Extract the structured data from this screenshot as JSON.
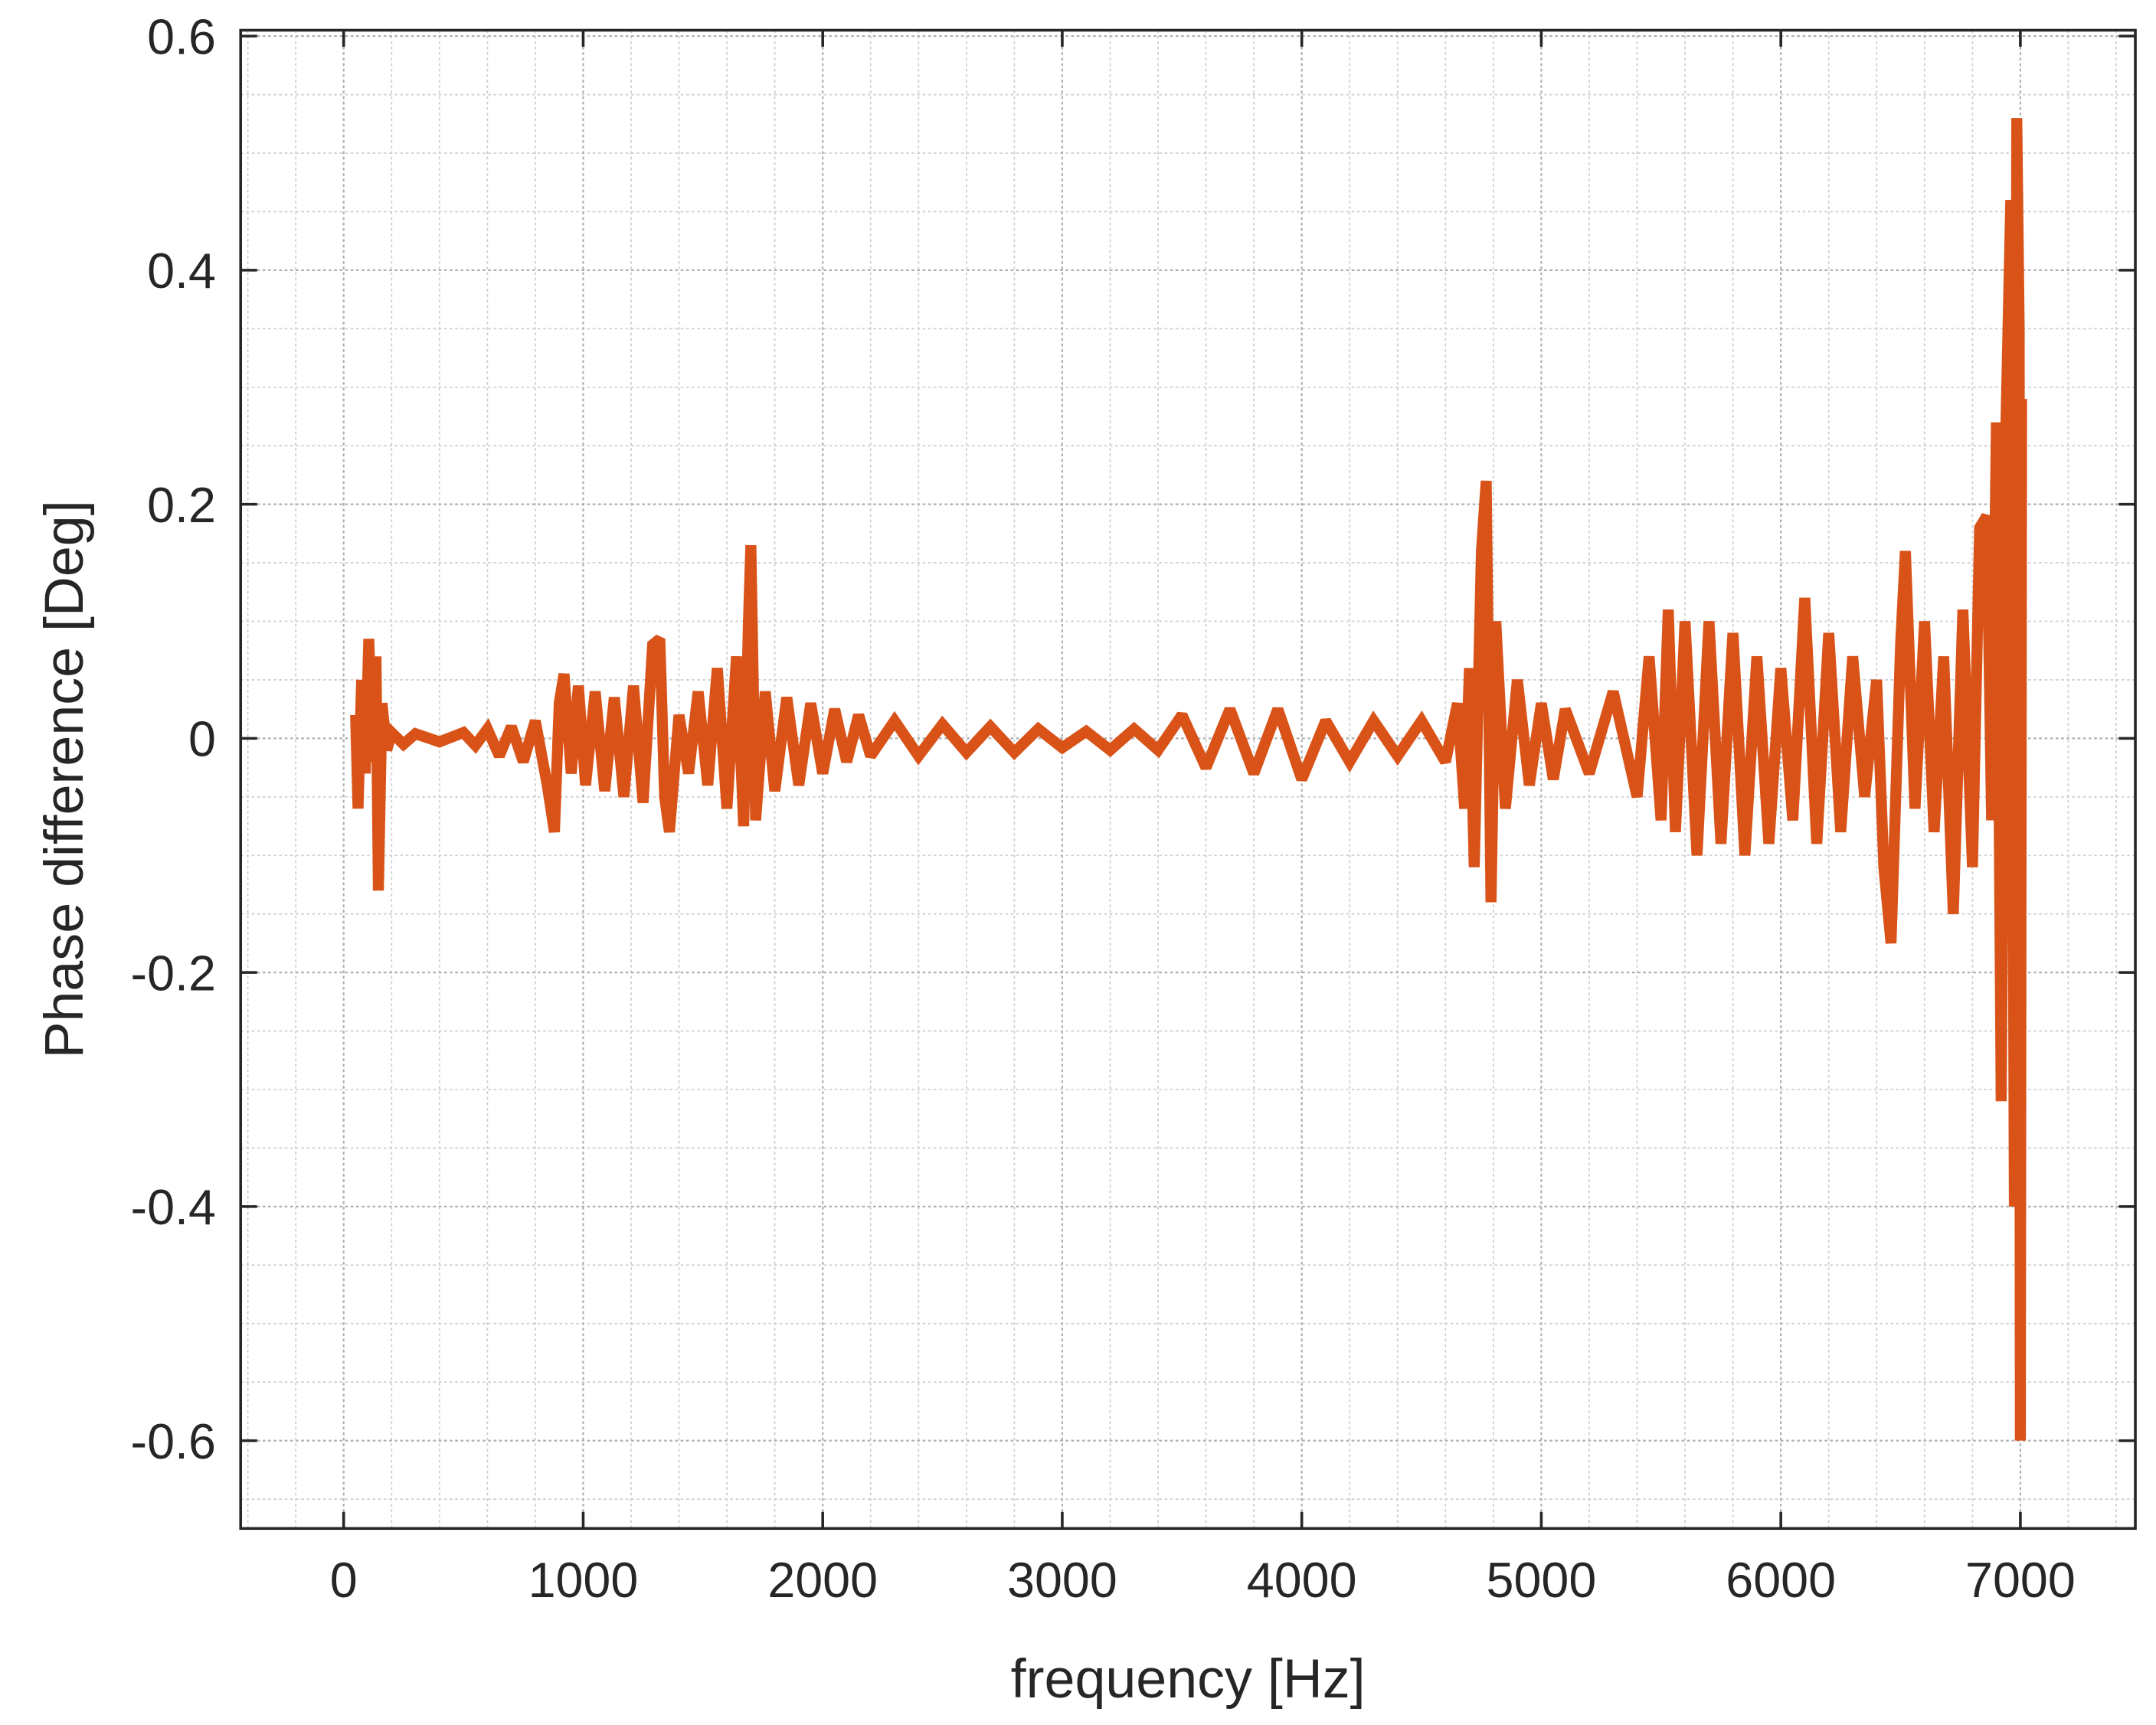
{
  "chart_data": {
    "type": "line",
    "xlabel": "frequency [Hz]",
    "ylabel": "Phase difference [Deg]",
    "xlim": [
      -430,
      7480
    ],
    "ylim": [
      -0.675,
      0.605
    ],
    "xticks": [
      0,
      1000,
      2000,
      3000,
      4000,
      5000,
      6000,
      7000
    ],
    "yticks": [
      -0.6,
      -0.4,
      -0.2,
      0,
      0.2,
      0.4,
      0.6
    ],
    "grid": true,
    "minor_grid": true,
    "series": [
      {
        "color": "#d95319",
        "x": [
          50,
          60,
          75,
          90,
          105,
          120,
          135,
          145,
          160,
          180,
          200,
          250,
          300,
          400,
          500,
          550,
          600,
          650,
          700,
          750,
          800,
          850,
          880,
          900,
          920,
          950,
          980,
          1010,
          1050,
          1090,
          1130,
          1170,
          1210,
          1250,
          1290,
          1320,
          1340,
          1360,
          1400,
          1440,
          1480,
          1520,
          1560,
          1600,
          1640,
          1670,
          1690,
          1700,
          1720,
          1760,
          1800,
          1850,
          1900,
          1950,
          2000,
          2050,
          2100,
          2150,
          2200,
          2300,
          2400,
          2500,
          2600,
          2700,
          2800,
          2900,
          3000,
          3100,
          3200,
          3300,
          3400,
          3500,
          3600,
          3700,
          3800,
          3900,
          4000,
          4100,
          4200,
          4300,
          4400,
          4500,
          4600,
          4650,
          4680,
          4700,
          4720,
          4750,
          4770,
          4790,
          4810,
          4850,
          4900,
          4950,
          5000,
          5050,
          5100,
          5200,
          5300,
          5400,
          5450,
          5500,
          5530,
          5560,
          5600,
          5650,
          5700,
          5750,
          5800,
          5850,
          5900,
          5950,
          6000,
          6050,
          6100,
          6150,
          6200,
          6250,
          6300,
          6350,
          6400,
          6430,
          6460,
          6500,
          6520,
          6560,
          6600,
          6640,
          6680,
          6720,
          6760,
          6800,
          6830,
          6860,
          6880,
          6900,
          6920,
          6940,
          6960,
          6975,
          6985,
          6995,
          7000,
          7005
        ],
        "values": [
          0.02,
          -0.06,
          0.05,
          -0.03,
          0.085,
          -0.02,
          0.07,
          -0.13,
          0.03,
          -0.01,
          0.005,
          -0.005,
          0.004,
          -0.003,
          0.005,
          -0.006,
          0.008,
          -0.015,
          0.01,
          -0.02,
          0.015,
          -0.04,
          -0.08,
          0.03,
          0.055,
          -0.03,
          0.045,
          -0.04,
          0.04,
          -0.045,
          0.035,
          -0.05,
          0.045,
          -0.055,
          0.08,
          0.085,
          -0.05,
          -0.08,
          0.02,
          -0.03,
          0.04,
          -0.04,
          0.06,
          -0.06,
          0.07,
          -0.075,
          0.1,
          0.165,
          -0.07,
          0.04,
          -0.045,
          0.035,
          -0.04,
          0.03,
          -0.03,
          0.025,
          -0.02,
          0.02,
          -0.015,
          0.015,
          -0.015,
          0.012,
          -0.012,
          0.01,
          -0.012,
          0.008,
          -0.008,
          0.006,
          -0.01,
          0.008,
          -0.01,
          0.02,
          -0.025,
          0.025,
          -0.03,
          0.025,
          -0.035,
          0.015,
          -0.02,
          0.015,
          -0.015,
          0.015,
          -0.02,
          0.03,
          -0.06,
          0.06,
          -0.11,
          0.16,
          0.22,
          -0.14,
          0.1,
          -0.06,
          0.05,
          -0.04,
          0.03,
          -0.035,
          0.025,
          -0.03,
          0.04,
          -0.05,
          0.07,
          -0.07,
          0.11,
          -0.08,
          0.1,
          -0.1,
          0.1,
          -0.09,
          0.09,
          -0.1,
          0.07,
          -0.09,
          0.06,
          -0.07,
          0.12,
          -0.09,
          0.09,
          -0.08,
          0.07,
          -0.05,
          0.05,
          -0.11,
          -0.175,
          0.08,
          0.16,
          -0.06,
          0.1,
          -0.08,
          0.07,
          -0.15,
          0.11,
          -0.11,
          0.18,
          0.19,
          -0.07,
          0.27,
          -0.31,
          0.27,
          0.46,
          -0.4,
          0.53,
          0.35,
          -0.6,
          0.29
        ]
      }
    ]
  }
}
